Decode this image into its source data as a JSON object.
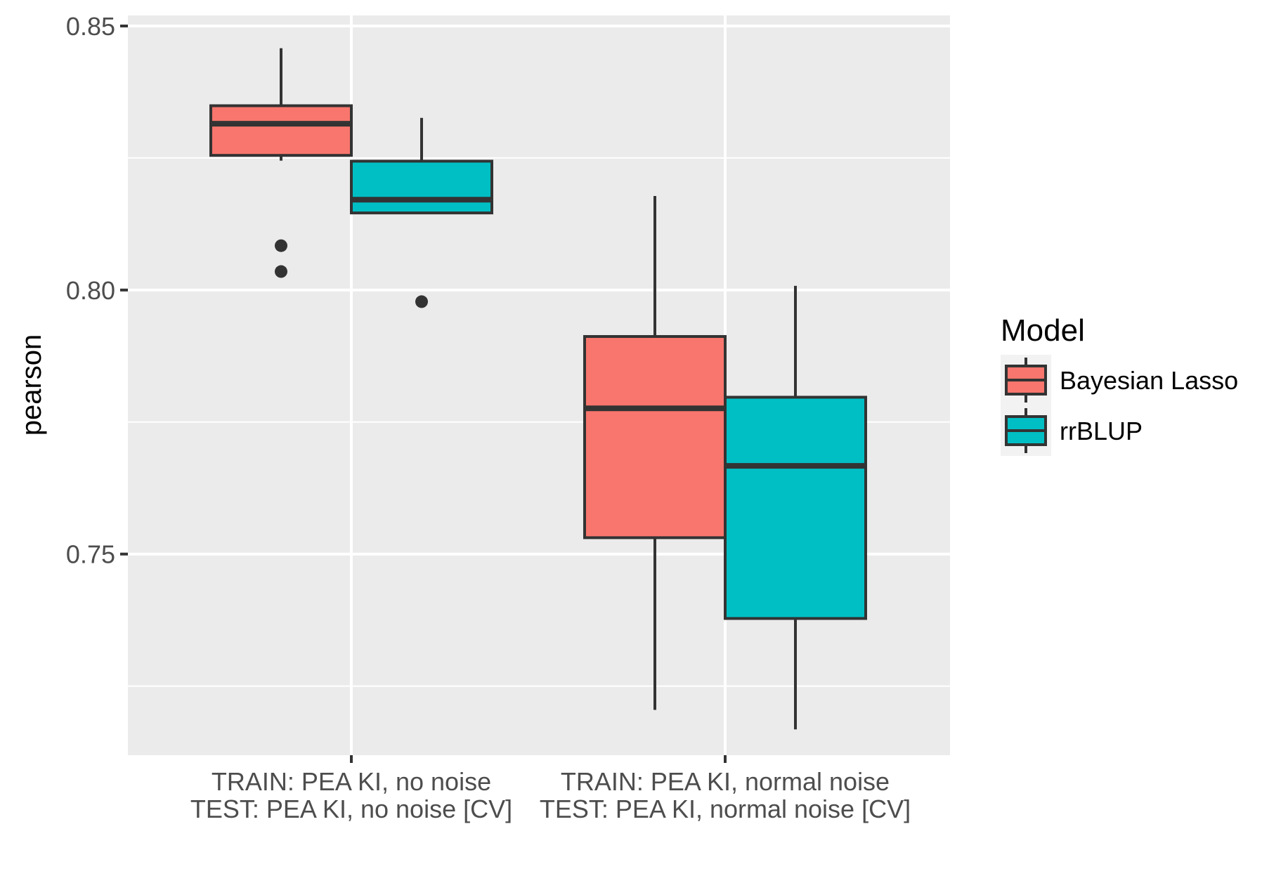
{
  "chart_data": {
    "type": "boxplot",
    "ylabel": "pearson",
    "xlabel": "",
    "ylim": [
      0.7125,
      0.852
    ],
    "yticks": [
      {
        "value": 0.85,
        "label": "0.85"
      },
      {
        "value": 0.8,
        "label": "0.80"
      },
      {
        "value": 0.75,
        "label": "0.75"
      }
    ],
    "minor_y_gridlines": [
      0.825,
      0.775,
      0.725
    ],
    "grid": true,
    "categories": [
      {
        "line1": "TRAIN: PEA KI, no noise",
        "line2": "TEST: PEA KI, no noise [CV]"
      },
      {
        "line1": "TRAIN: PEA KI, normal noise",
        "line2": "TEST: PEA KI, normal noise [CV]"
      }
    ],
    "legend": {
      "title": "Model",
      "position": "right"
    },
    "series": [
      {
        "name": "Bayesian Lasso",
        "color": "#F8766D",
        "boxes": [
          {
            "whisker_low": 0.8245,
            "q1": 0.8255,
            "median": 0.8315,
            "q3": 0.8349,
            "whisker_high": 0.8458,
            "outliers": [
              0.8084,
              0.8035
            ]
          },
          {
            "whisker_low": 0.7205,
            "q1": 0.7531,
            "median": 0.7776,
            "q3": 0.7912,
            "whisker_high": 0.8178,
            "outliers": []
          }
        ]
      },
      {
        "name": "rrBLUP",
        "color": "#00BFC4",
        "boxes": [
          {
            "whisker_low": 0.8146,
            "q1": 0.8146,
            "median": 0.8171,
            "q3": 0.8244,
            "whisker_high": 0.8326,
            "outliers": [
              0.7978
            ]
          },
          {
            "whisker_low": 0.7168,
            "q1": 0.7378,
            "median": 0.7667,
            "q3": 0.7797,
            "whisker_high": 0.8008,
            "outliers": []
          }
        ]
      }
    ],
    "colors": {
      "panel": "#EBEBEB",
      "grid": "#FFFFFF",
      "outline": "#333333",
      "tick": "#333333"
    }
  }
}
